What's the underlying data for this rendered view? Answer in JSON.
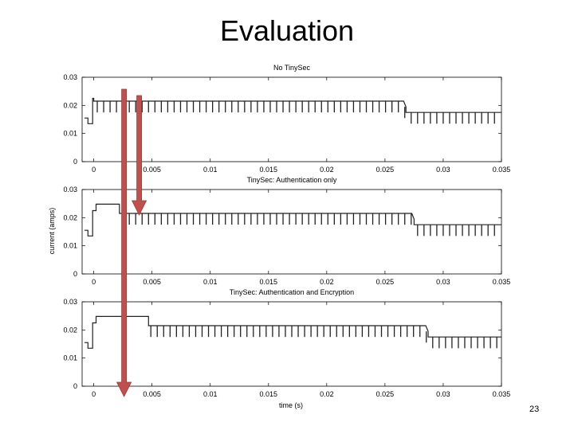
{
  "slide": {
    "title": "Evaluation",
    "page_number": "23"
  },
  "figure": {
    "shared_ylabel": "current (amps)",
    "shared_xlabel": "time (s)"
  },
  "colors": {
    "trace": "#222222",
    "arrow": "#c0504d",
    "arrow_stroke": "#9e3a37",
    "axis": "#000000"
  },
  "chart_data": [
    {
      "type": "line",
      "title": "No TinySec",
      "xlim": [
        -0.001,
        0.035
      ],
      "ylim": [
        0,
        0.03
      ],
      "xticks": [
        0,
        0.005,
        0.01,
        0.015,
        0.02,
        0.025,
        0.03,
        0.035
      ],
      "xtick_labels": [
        "0",
        "0.005",
        "0.01",
        "0.015",
        "0.02",
        "0.025",
        "0.03",
        "0.035"
      ],
      "yticks": [
        0,
        0.01,
        0.02,
        0.03
      ],
      "ytick_labels": [
        "0",
        "0.01",
        "0.02",
        "0.03"
      ],
      "grid": false,
      "series": [
        {
          "x": [
            -0.0008,
            -0.0005,
            -0.0005,
            -0.0001,
            -0.0001,
            0.0,
            0.0,
            0.0266,
            0.0268,
            0.0268,
            0.035
          ],
          "y": [
            0.0155,
            0.0155,
            0.0135,
            0.0135,
            0.0225,
            0.0225,
            0.0215,
            0.0215,
            0.0195,
            0.0175,
            0.0175
          ],
          "spikes": {
            "from": 0.0003,
            "to": 0.035,
            "period": 0.00055,
            "depth": 0.004
          }
        }
      ]
    },
    {
      "type": "line",
      "title": "TinySec: Authentication only",
      "xlim": [
        -0.001,
        0.035
      ],
      "ylim": [
        0,
        0.03
      ],
      "xticks": [
        0,
        0.005,
        0.01,
        0.015,
        0.02,
        0.025,
        0.03,
        0.035
      ],
      "xtick_labels": [
        "0",
        "0.005",
        "0.01",
        "0.015",
        "0.02",
        "0.025",
        "0.03",
        "0.035"
      ],
      "yticks": [
        0,
        0.01,
        0.02,
        0.03
      ],
      "ytick_labels": [
        "0",
        "0.01",
        "0.02",
        "0.03"
      ],
      "grid": false,
      "series": [
        {
          "x": [
            -0.0008,
            -0.0005,
            -0.0005,
            -0.0001,
            -0.0001,
            0.0002,
            0.0002,
            0.0022,
            0.0022,
            0.0273,
            0.0275,
            0.0275,
            0.035
          ],
          "y": [
            0.0155,
            0.0155,
            0.0135,
            0.0135,
            0.0225,
            0.0225,
            0.0248,
            0.0248,
            0.0215,
            0.0215,
            0.0195,
            0.0175,
            0.0175
          ],
          "spikes": {
            "from": 0.0025,
            "to": 0.035,
            "period": 0.00055,
            "depth": 0.004
          }
        }
      ]
    },
    {
      "type": "line",
      "title": "TinySec: Authentication and Encryption",
      "xlim": [
        -0.001,
        0.035
      ],
      "ylim": [
        0,
        0.03
      ],
      "xticks": [
        0,
        0.005,
        0.01,
        0.015,
        0.02,
        0.025,
        0.03,
        0.035
      ],
      "xtick_labels": [
        "0",
        "0.005",
        "0.01",
        "0.015",
        "0.02",
        "0.025",
        "0.03",
        "0.035"
      ],
      "yticks": [
        0,
        0.01,
        0.02,
        0.03
      ],
      "ytick_labels": [
        "0",
        "0.01",
        "0.02",
        "0.03"
      ],
      "grid": false,
      "series": [
        {
          "x": [
            -0.0008,
            -0.0005,
            -0.0005,
            -0.0001,
            -0.0001,
            0.0002,
            0.0002,
            0.0047,
            0.0047,
            0.0285,
            0.0287,
            0.0287,
            0.035
          ],
          "y": [
            0.0155,
            0.0155,
            0.0135,
            0.0135,
            0.0225,
            0.0225,
            0.0248,
            0.0248,
            0.0215,
            0.0215,
            0.0195,
            0.0175,
            0.0175
          ],
          "spikes": {
            "from": 0.0049,
            "to": 0.035,
            "period": 0.00055,
            "depth": 0.004
          }
        }
      ]
    }
  ],
  "annotations": [
    {
      "type": "arrow",
      "from_x": 0.0026,
      "to_x": 0.0026,
      "note": "long arrow from plot 1 to plot 3"
    },
    {
      "type": "arrow",
      "from_x": 0.0039,
      "to_x": 0.0039,
      "note": "short arrow from plot 1 to plot 2"
    }
  ]
}
